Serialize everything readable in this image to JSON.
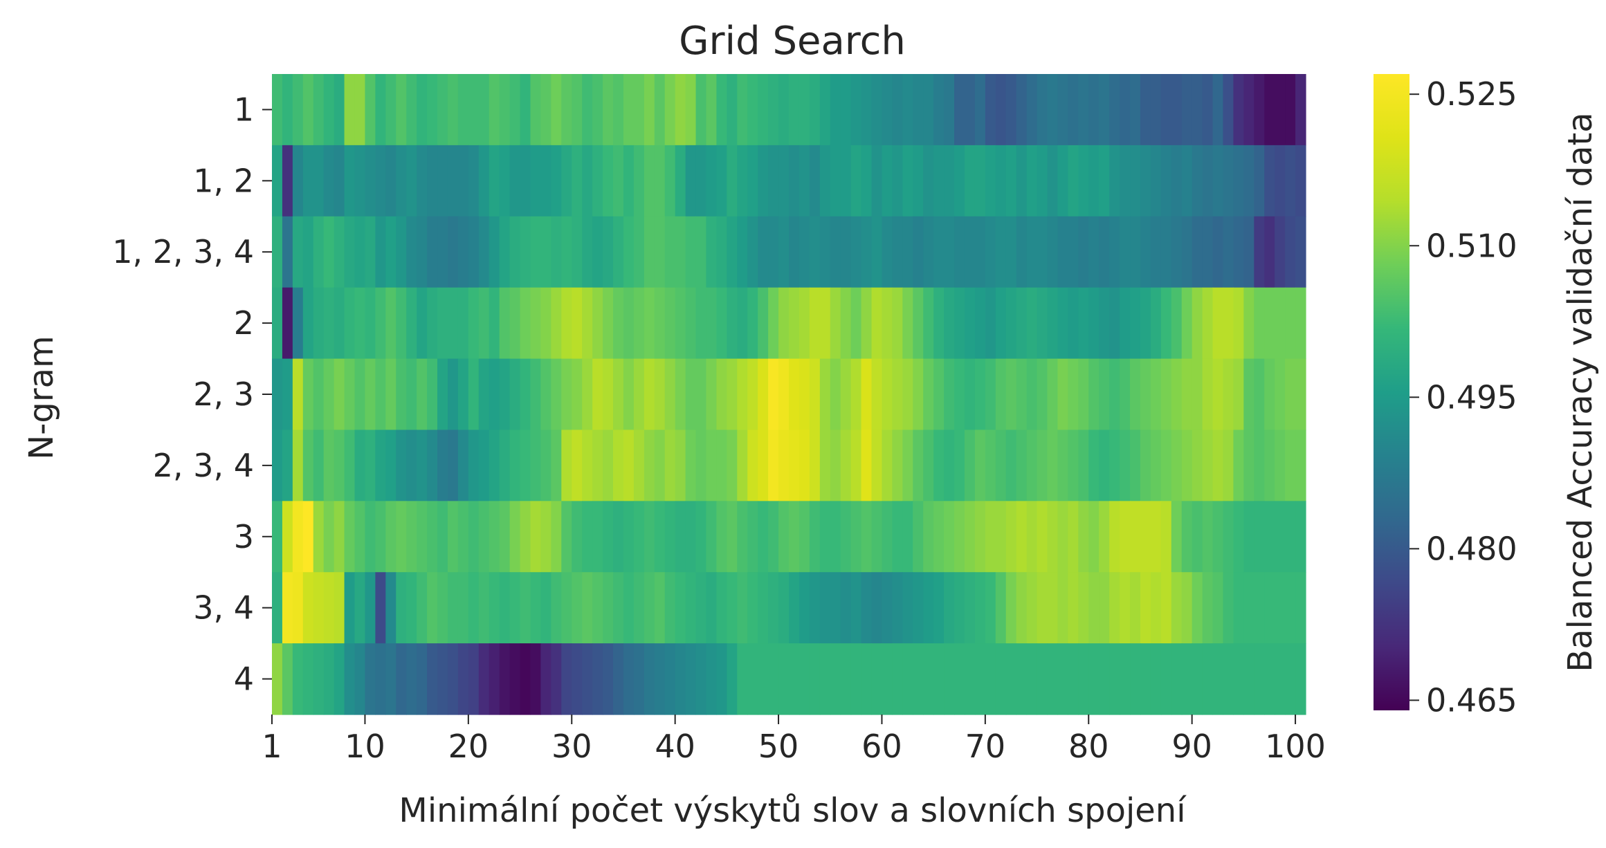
{
  "chart_data": {
    "type": "heatmap",
    "title": "Grid Search",
    "xlabel": "Minimální počet výskytů slov a slovních spojení",
    "ylabel": "N-gram",
    "colorbar_label": "Balanced Accuracy validační data",
    "colormap": "viridis",
    "vmin": 0.464,
    "vmax": 0.527,
    "x_range": [
      1,
      100
    ],
    "x_ticks": [
      "1",
      "10",
      "20",
      "30",
      "40",
      "50",
      "60",
      "70",
      "80",
      "90",
      "100"
    ],
    "colorbar_ticks": [
      "0.465",
      "0.480",
      "0.495",
      "0.510",
      "0.525"
    ],
    "rows": [
      {
        "label": "1",
        "values": [
          0.503,
          0.501,
          0.503,
          0.505,
          0.503,
          0.501,
          0.499,
          0.511,
          0.511,
          0.505,
          0.501,
          0.503,
          0.505,
          0.503,
          0.501,
          0.502,
          0.503,
          0.504,
          0.503,
          0.503,
          0.503,
          0.505,
          0.504,
          0.503,
          0.501,
          0.505,
          0.506,
          0.508,
          0.506,
          0.505,
          0.503,
          0.504,
          0.506,
          0.505,
          0.507,
          0.507,
          0.509,
          0.506,
          0.509,
          0.511,
          0.51,
          0.504,
          0.506,
          0.502,
          0.5,
          0.503,
          0.502,
          0.501,
          0.5,
          0.499,
          0.5,
          0.5,
          0.499,
          0.497,
          0.495,
          0.495,
          0.494,
          0.493,
          0.492,
          0.491,
          0.49,
          0.491,
          0.49,
          0.49,
          0.488,
          0.487,
          0.482,
          0.482,
          0.484,
          0.48,
          0.479,
          0.48,
          0.482,
          0.484,
          0.486,
          0.487,
          0.486,
          0.485,
          0.486,
          0.485,
          0.486,
          0.484,
          0.483,
          0.484,
          0.481,
          0.481,
          0.48,
          0.48,
          0.481,
          0.481,
          0.48,
          0.483,
          0.478,
          0.472,
          0.47,
          0.468,
          0.466,
          0.466,
          0.466,
          0.47
        ]
      },
      {
        "label": "1, 2",
        "values": [
          0.497,
          0.472,
          0.49,
          0.493,
          0.493,
          0.491,
          0.49,
          0.494,
          0.493,
          0.492,
          0.491,
          0.49,
          0.492,
          0.493,
          0.491,
          0.49,
          0.49,
          0.49,
          0.49,
          0.491,
          0.494,
          0.497,
          0.496,
          0.494,
          0.494,
          0.495,
          0.495,
          0.496,
          0.498,
          0.5,
          0.498,
          0.5,
          0.502,
          0.503,
          0.501,
          0.503,
          0.505,
          0.505,
          0.503,
          0.499,
          0.494,
          0.494,
          0.495,
          0.496,
          0.499,
          0.497,
          0.496,
          0.494,
          0.493,
          0.493,
          0.492,
          0.493,
          0.491,
          0.494,
          0.495,
          0.495,
          0.497,
          0.496,
          0.493,
          0.495,
          0.494,
          0.496,
          0.495,
          0.493,
          0.494,
          0.494,
          0.495,
          0.497,
          0.497,
          0.496,
          0.495,
          0.496,
          0.494,
          0.496,
          0.495,
          0.493,
          0.495,
          0.497,
          0.496,
          0.495,
          0.496,
          0.493,
          0.492,
          0.492,
          0.491,
          0.49,
          0.489,
          0.488,
          0.489,
          0.487,
          0.486,
          0.487,
          0.486,
          0.485,
          0.484,
          0.482,
          0.478,
          0.477,
          0.478,
          0.477
        ]
      },
      {
        "label": "1, 2, 3, 4",
        "values": [
          0.5,
          0.486,
          0.498,
          0.497,
          0.5,
          0.502,
          0.5,
          0.498,
          0.497,
          0.498,
          0.494,
          0.496,
          0.494,
          0.491,
          0.49,
          0.488,
          0.488,
          0.487,
          0.488,
          0.489,
          0.491,
          0.494,
          0.497,
          0.499,
          0.5,
          0.501,
          0.501,
          0.5,
          0.501,
          0.5,
          0.498,
          0.497,
          0.498,
          0.5,
          0.502,
          0.503,
          0.505,
          0.505,
          0.504,
          0.504,
          0.503,
          0.503,
          0.5,
          0.499,
          0.497,
          0.495,
          0.493,
          0.491,
          0.491,
          0.492,
          0.49,
          0.491,
          0.492,
          0.491,
          0.49,
          0.49,
          0.491,
          0.492,
          0.493,
          0.491,
          0.49,
          0.49,
          0.489,
          0.49,
          0.491,
          0.491,
          0.49,
          0.49,
          0.49,
          0.491,
          0.492,
          0.492,
          0.49,
          0.491,
          0.491,
          0.49,
          0.489,
          0.489,
          0.488,
          0.489,
          0.488,
          0.489,
          0.49,
          0.49,
          0.489,
          0.488,
          0.488,
          0.487,
          0.486,
          0.484,
          0.484,
          0.483,
          0.484,
          0.483,
          0.482,
          0.474,
          0.472,
          0.475,
          0.477,
          0.478
        ]
      },
      {
        "label": "2",
        "values": [
          0.499,
          0.468,
          0.488,
          0.497,
          0.499,
          0.5,
          0.499,
          0.501,
          0.502,
          0.501,
          0.503,
          0.505,
          0.503,
          0.5,
          0.497,
          0.499,
          0.5,
          0.5,
          0.5,
          0.502,
          0.503,
          0.501,
          0.505,
          0.506,
          0.508,
          0.509,
          0.51,
          0.512,
          0.514,
          0.515,
          0.513,
          0.511,
          0.509,
          0.507,
          0.506,
          0.507,
          0.508,
          0.507,
          0.506,
          0.505,
          0.504,
          0.503,
          0.503,
          0.502,
          0.5,
          0.499,
          0.501,
          0.504,
          0.508,
          0.511,
          0.512,
          0.513,
          0.515,
          0.515,
          0.512,
          0.51,
          0.508,
          0.511,
          0.514,
          0.513,
          0.512,
          0.509,
          0.506,
          0.503,
          0.5,
          0.498,
          0.497,
          0.496,
          0.495,
          0.494,
          0.496,
          0.497,
          0.498,
          0.499,
          0.498,
          0.497,
          0.496,
          0.495,
          0.496,
          0.495,
          0.494,
          0.493,
          0.495,
          0.496,
          0.497,
          0.499,
          0.502,
          0.504,
          0.508,
          0.511,
          0.513,
          0.515,
          0.515,
          0.514,
          0.51,
          0.508,
          0.508,
          0.508,
          0.508,
          0.508
        ]
      },
      {
        "label": "2, 3",
        "values": [
          0.494,
          0.495,
          0.515,
          0.507,
          0.505,
          0.507,
          0.509,
          0.507,
          0.505,
          0.507,
          0.505,
          0.507,
          0.504,
          0.503,
          0.505,
          0.503,
          0.497,
          0.494,
          0.497,
          0.501,
          0.497,
          0.496,
          0.497,
          0.499,
          0.501,
          0.503,
          0.505,
          0.507,
          0.509,
          0.51,
          0.512,
          0.515,
          0.514,
          0.512,
          0.51,
          0.512,
          0.514,
          0.513,
          0.511,
          0.509,
          0.507,
          0.507,
          0.509,
          0.511,
          0.512,
          0.514,
          0.516,
          0.52,
          0.526,
          0.524,
          0.521,
          0.52,
          0.518,
          0.512,
          0.51,
          0.512,
          0.514,
          0.52,
          0.516,
          0.514,
          0.513,
          0.512,
          0.51,
          0.507,
          0.505,
          0.503,
          0.502,
          0.501,
          0.502,
          0.503,
          0.505,
          0.506,
          0.505,
          0.504,
          0.505,
          0.507,
          0.509,
          0.508,
          0.507,
          0.505,
          0.504,
          0.503,
          0.504,
          0.506,
          0.507,
          0.508,
          0.509,
          0.51,
          0.511,
          0.511,
          0.513,
          0.514,
          0.513,
          0.512,
          0.506,
          0.505,
          0.507,
          0.508,
          0.509,
          0.509
        ]
      },
      {
        "label": "2, 3, 4",
        "values": [
          0.495,
          0.497,
          0.513,
          0.505,
          0.503,
          0.506,
          0.505,
          0.503,
          0.499,
          0.5,
          0.497,
          0.496,
          0.493,
          0.492,
          0.493,
          0.491,
          0.488,
          0.487,
          0.491,
          0.494,
          0.495,
          0.497,
          0.499,
          0.501,
          0.502,
          0.503,
          0.504,
          0.506,
          0.514,
          0.516,
          0.514,
          0.513,
          0.512,
          0.514,
          0.515,
          0.513,
          0.511,
          0.51,
          0.512,
          0.511,
          0.508,
          0.507,
          0.508,
          0.508,
          0.509,
          0.513,
          0.518,
          0.52,
          0.525,
          0.523,
          0.522,
          0.521,
          0.518,
          0.512,
          0.511,
          0.513,
          0.515,
          0.521,
          0.516,
          0.513,
          0.511,
          0.509,
          0.506,
          0.504,
          0.502,
          0.501,
          0.502,
          0.504,
          0.506,
          0.505,
          0.504,
          0.503,
          0.504,
          0.505,
          0.506,
          0.507,
          0.506,
          0.505,
          0.504,
          0.502,
          0.501,
          0.502,
          0.503,
          0.504,
          0.506,
          0.507,
          0.508,
          0.509,
          0.51,
          0.511,
          0.512,
          0.513,
          0.512,
          0.508,
          0.506,
          0.505,
          0.506,
          0.507,
          0.508,
          0.508
        ]
      },
      {
        "label": "3",
        "values": [
          0.502,
          0.518,
          0.525,
          0.527,
          0.512,
          0.509,
          0.511,
          0.507,
          0.505,
          0.503,
          0.504,
          0.506,
          0.507,
          0.506,
          0.505,
          0.504,
          0.503,
          0.505,
          0.504,
          0.503,
          0.504,
          0.505,
          0.506,
          0.509,
          0.511,
          0.513,
          0.512,
          0.51,
          0.505,
          0.503,
          0.502,
          0.502,
          0.501,
          0.5,
          0.501,
          0.502,
          0.503,
          0.502,
          0.501,
          0.5,
          0.5,
          0.501,
          0.503,
          0.505,
          0.506,
          0.504,
          0.503,
          0.502,
          0.503,
          0.505,
          0.506,
          0.505,
          0.503,
          0.502,
          0.502,
          0.503,
          0.504,
          0.505,
          0.504,
          0.503,
          0.502,
          0.502,
          0.504,
          0.506,
          0.507,
          0.508,
          0.509,
          0.51,
          0.511,
          0.512,
          0.512,
          0.513,
          0.514,
          0.513,
          0.514,
          0.513,
          0.512,
          0.513,
          0.511,
          0.51,
          0.512,
          0.515,
          0.516,
          0.516,
          0.516,
          0.516,
          0.515,
          0.508,
          0.505,
          0.504,
          0.505,
          0.504,
          0.503,
          0.502,
          0.501,
          0.501,
          0.501,
          0.501,
          0.501,
          0.501
        ]
      },
      {
        "label": "3, 4",
        "values": [
          0.5,
          0.525,
          0.524,
          0.518,
          0.517,
          0.516,
          0.515,
          0.495,
          0.498,
          0.494,
          0.477,
          0.491,
          0.5,
          0.501,
          0.503,
          0.505,
          0.504,
          0.503,
          0.503,
          0.502,
          0.503,
          0.502,
          0.501,
          0.502,
          0.503,
          0.502,
          0.501,
          0.503,
          0.504,
          0.505,
          0.506,
          0.505,
          0.504,
          0.503,
          0.502,
          0.503,
          0.504,
          0.505,
          0.503,
          0.502,
          0.501,
          0.5,
          0.499,
          0.501,
          0.502,
          0.503,
          0.502,
          0.501,
          0.5,
          0.499,
          0.497,
          0.495,
          0.494,
          0.493,
          0.493,
          0.492,
          0.493,
          0.491,
          0.49,
          0.491,
          0.492,
          0.493,
          0.494,
          0.495,
          0.496,
          0.498,
          0.499,
          0.5,
          0.501,
          0.502,
          0.505,
          0.509,
          0.511,
          0.512,
          0.513,
          0.513,
          0.512,
          0.513,
          0.512,
          0.511,
          0.511,
          0.513,
          0.514,
          0.513,
          0.515,
          0.514,
          0.515,
          0.512,
          0.511,
          0.508,
          0.506,
          0.505,
          0.503,
          0.502,
          0.502,
          0.502,
          0.502,
          0.502,
          0.502,
          0.502
        ]
      },
      {
        "label": "4",
        "values": [
          0.511,
          0.506,
          0.502,
          0.501,
          0.5,
          0.499,
          0.497,
          0.492,
          0.49,
          0.486,
          0.485,
          0.486,
          0.483,
          0.484,
          0.483,
          0.48,
          0.479,
          0.478,
          0.476,
          0.475,
          0.471,
          0.469,
          0.467,
          0.466,
          0.465,
          0.466,
          0.47,
          0.472,
          0.476,
          0.477,
          0.478,
          0.479,
          0.48,
          0.482,
          0.484,
          0.485,
          0.487,
          0.488,
          0.489,
          0.49,
          0.491,
          0.492,
          0.493,
          0.494,
          0.497,
          0.501,
          0.501,
          0.501,
          0.501,
          0.501,
          0.501,
          0.501,
          0.501,
          0.501,
          0.501,
          0.501,
          0.501,
          0.501,
          0.501,
          0.501,
          0.501,
          0.501,
          0.501,
          0.501,
          0.501,
          0.501,
          0.501,
          0.501,
          0.501,
          0.501,
          0.501,
          0.501,
          0.501,
          0.501,
          0.501,
          0.501,
          0.501,
          0.501,
          0.501,
          0.501,
          0.501,
          0.501,
          0.501,
          0.501,
          0.501,
          0.501,
          0.501,
          0.501,
          0.501,
          0.501,
          0.501,
          0.501,
          0.501,
          0.501,
          0.501,
          0.501,
          0.501,
          0.501,
          0.501,
          0.501
        ]
      }
    ]
  }
}
